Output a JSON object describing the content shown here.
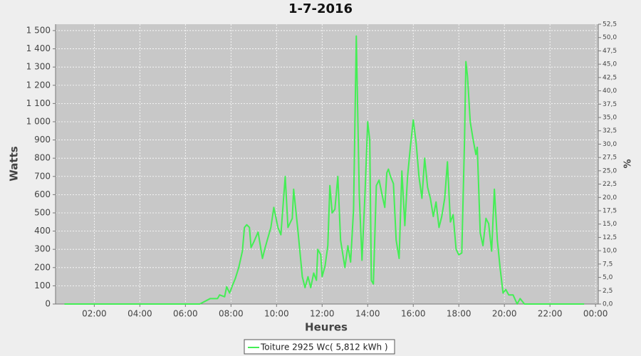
{
  "chart_data": {
    "type": "line",
    "title": "1-7-2016",
    "xlabel": "Heures",
    "ylabel": "Watts",
    "y2label": "%",
    "x": [
      0.69,
      6.63,
      7.09,
      7.41,
      7.5,
      7.72,
      7.81,
      7.94,
      8.06,
      8.19,
      8.34,
      8.5,
      8.59,
      8.69,
      8.81,
      8.88,
      9.0,
      9.19,
      9.38,
      9.5,
      9.75,
      9.88,
      10.06,
      10.19,
      10.38,
      10.5,
      10.69,
      10.75,
      10.94,
      11.13,
      11.25,
      11.38,
      11.5,
      11.63,
      11.75,
      11.81,
      11.94,
      12.0,
      12.13,
      12.25,
      12.34,
      12.44,
      12.56,
      12.69,
      12.81,
      13.0,
      13.13,
      13.25,
      13.38,
      13.5,
      13.63,
      13.75,
      13.88,
      14.0,
      14.09,
      14.16,
      14.25,
      14.38,
      14.5,
      14.63,
      14.75,
      14.84,
      14.91,
      15.0,
      15.13,
      15.25,
      15.38,
      15.5,
      15.63,
      15.75,
      15.88,
      16.0,
      16.13,
      16.25,
      16.38,
      16.5,
      16.63,
      16.75,
      16.88,
      17.0,
      17.13,
      17.25,
      17.38,
      17.5,
      17.63,
      17.75,
      17.88,
      18.0,
      18.13,
      18.25,
      18.31,
      18.38,
      18.5,
      18.63,
      18.75,
      18.81,
      18.94,
      19.06,
      19.19,
      19.31,
      19.44,
      19.56,
      19.69,
      19.81,
      19.94,
      20.06,
      20.19,
      20.38,
      20.56,
      20.69,
      20.88,
      23.5
    ],
    "series": [
      {
        "name": "Toiture 2925 Wc( 5,812 kWh )",
        "color": "#44ee55",
        "values": [
          0,
          0,
          30,
          30,
          50,
          40,
          95,
          60,
          100,
          140,
          200,
          290,
          420,
          435,
          420,
          310,
          340,
          395,
          250,
          310,
          420,
          530,
          420,
          380,
          700,
          420,
          470,
          630,
          400,
          150,
          90,
          150,
          90,
          170,
          130,
          300,
          270,
          150,
          210,
          320,
          650,
          500,
          520,
          700,
          350,
          200,
          320,
          230,
          520,
          1470,
          600,
          240,
          600,
          1000,
          900,
          130,
          110,
          650,
          680,
          600,
          530,
          720,
          740,
          700,
          660,
          350,
          250,
          730,
          430,
          700,
          870,
          1010,
          880,
          700,
          580,
          800,
          640,
          580,
          480,
          560,
          420,
          480,
          580,
          780,
          450,
          490,
          300,
          270,
          280,
          900,
          1330,
          1250,
          1000,
          900,
          820,
          860,
          390,
          320,
          470,
          440,
          290,
          630,
          350,
          200,
          60,
          80,
          50,
          50,
          0,
          30,
          0,
          0
        ]
      }
    ],
    "xlim": [
      0.3,
      24.12
    ],
    "xticks": [
      {
        "value": 2,
        "label": "02:00"
      },
      {
        "value": 4,
        "label": "04:00"
      },
      {
        "value": 6,
        "label": "06:00"
      },
      {
        "value": 8,
        "label": "08:00"
      },
      {
        "value": 10,
        "label": "10:00"
      },
      {
        "value": 12,
        "label": "12:00"
      },
      {
        "value": 14,
        "label": "14:00"
      },
      {
        "value": 16,
        "label": "16:00"
      },
      {
        "value": 18,
        "label": "18:00"
      },
      {
        "value": 20,
        "label": "20:00"
      },
      {
        "value": 22,
        "label": "22:00"
      },
      {
        "value": 24,
        "label": "00:00"
      }
    ],
    "ylim": [
      0,
      1535
    ],
    "yticks": [
      0,
      100,
      200,
      300,
      400,
      500,
      600,
      700,
      800,
      900,
      {
        "value": 1000,
        "label": "1 000"
      },
      {
        "value": 1100,
        "label": "1 100"
      },
      {
        "value": 1200,
        "label": "1 200"
      },
      {
        "value": 1300,
        "label": "1 300"
      },
      {
        "value": 1400,
        "label": "1 400"
      },
      {
        "value": 1500,
        "label": "1 500"
      }
    ],
    "y2lim": [
      0,
      52.5
    ],
    "y2ticks": [
      {
        "value": 0,
        "label": "0,0"
      },
      {
        "value": 2.5,
        "label": "2,5"
      },
      {
        "value": 5,
        "label": "5,0"
      },
      {
        "value": 7.5,
        "label": "7,5"
      },
      {
        "value": 10,
        "label": "10,0"
      },
      {
        "value": 12.5,
        "label": "12,5"
      },
      {
        "value": 15,
        "label": "15,0"
      },
      {
        "value": 17.5,
        "label": "17,5"
      },
      {
        "value": 20,
        "label": "20,0"
      },
      {
        "value": 22.5,
        "label": "22,5"
      },
      {
        "value": 25,
        "label": "25,0"
      },
      {
        "value": 27.5,
        "label": "27,5"
      },
      {
        "value": 30,
        "label": "30,0"
      },
      {
        "value": 32.5,
        "label": "32,5"
      },
      {
        "value": 35,
        "label": "35,0"
      },
      {
        "value": 37.5,
        "label": "37,5"
      },
      {
        "value": 40,
        "label": "40,0"
      },
      {
        "value": 42.5,
        "label": "42,5"
      },
      {
        "value": 45,
        "label": "45,0"
      },
      {
        "value": 47.5,
        "label": "47,5"
      },
      {
        "value": 50,
        "label": "50,0"
      },
      {
        "value": 52.5,
        "label": "52,5"
      }
    ],
    "grid": true
  }
}
